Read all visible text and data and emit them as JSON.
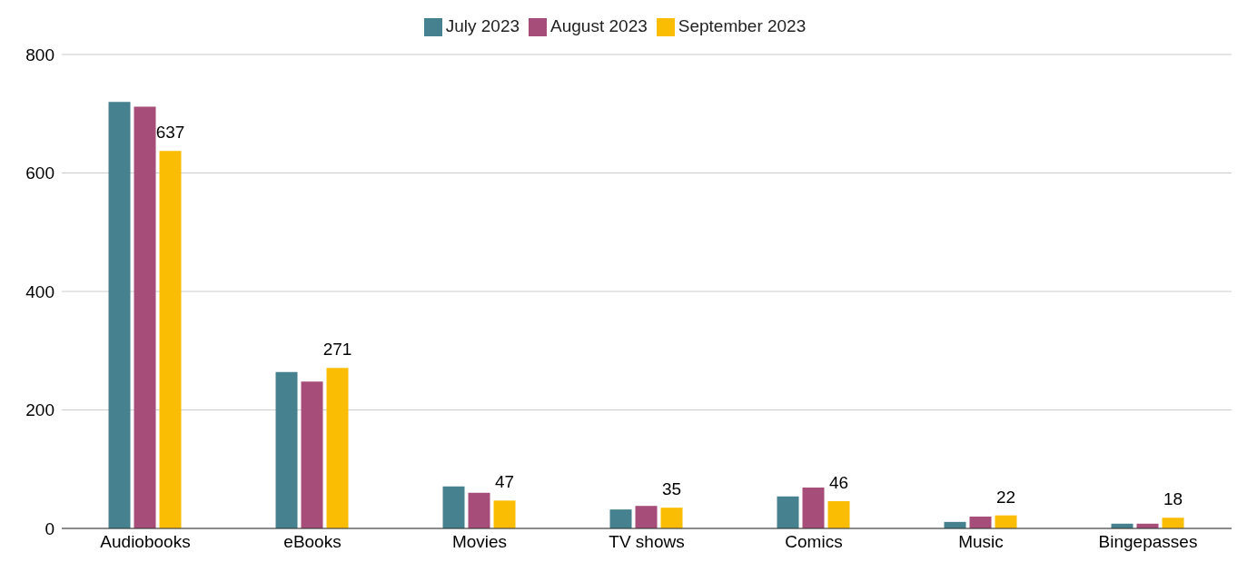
{
  "chart_data": {
    "type": "bar",
    "categories": [
      "Audiobooks",
      "eBooks",
      "Movies",
      "TV shows",
      "Comics",
      "Music",
      "Bingepasses"
    ],
    "series": [
      {
        "name": "July 2023",
        "color": "#45818e",
        "values": [
          720,
          264,
          71,
          32,
          54,
          11,
          8
        ]
      },
      {
        "name": "August 2023",
        "color": "#a64d79",
        "values": [
          712,
          248,
          60,
          38,
          69,
          20,
          8
        ]
      },
      {
        "name": "September 2023",
        "color": "#fbbc04",
        "values": [
          637,
          271,
          47,
          35,
          46,
          22,
          18
        ],
        "value_labels": [
          "637",
          "271",
          "47",
          "35",
          "46",
          "22",
          "18"
        ]
      }
    ],
    "ylim": [
      0,
      800
    ],
    "yticks": [
      0,
      200,
      400,
      600,
      800
    ],
    "grid": "y",
    "legend": "top"
  }
}
